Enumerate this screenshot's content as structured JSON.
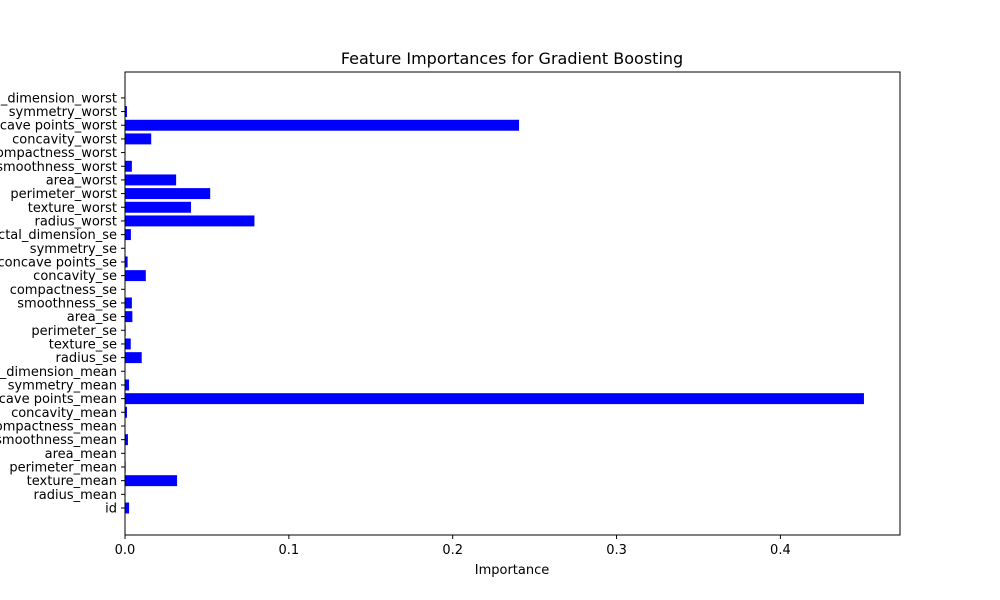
{
  "chart_data": {
    "type": "bar",
    "orientation": "horizontal",
    "title": "Feature Importances for Gradient Boosting",
    "xlabel": "Importance",
    "ylabel": "",
    "xlim": [
      0,
      0.473
    ],
    "xticks": [
      "0.0",
      "0.1",
      "0.2",
      "0.3",
      "0.4"
    ],
    "xtick_values": [
      0,
      0.1,
      0.2,
      0.3,
      0.4
    ],
    "bar_color": "#0000ff",
    "grid": false,
    "categories": [
      "id",
      "radius_mean",
      "texture_mean",
      "perimeter_mean",
      "area_mean",
      "smoothness_mean",
      "compactness_mean",
      "concavity_mean",
      "concave points_mean",
      "symmetry_mean",
      "fractal_dimension_mean",
      "radius_se",
      "texture_se",
      "perimeter_se",
      "area_se",
      "smoothness_se",
      "compactness_se",
      "concavity_se",
      "concave points_se",
      "symmetry_se",
      "fractal_dimension_se",
      "radius_worst",
      "texture_worst",
      "perimeter_worst",
      "area_worst",
      "smoothness_worst",
      "compactness_worst",
      "concavity_worst",
      "concave points_worst",
      "symmetry_worst",
      "fractal_dimension_worst"
    ],
    "values": [
      0.0025,
      0.0002,
      0.0318,
      0.0004,
      0.0002,
      0.0018,
      0.0003,
      0.0012,
      0.451,
      0.0025,
      0.0003,
      0.0102,
      0.0035,
      0.0004,
      0.0045,
      0.0042,
      0.0003,
      0.0127,
      0.0016,
      0.0003,
      0.0036,
      0.079,
      0.0403,
      0.052,
      0.0312,
      0.0042,
      0.0003,
      0.016,
      0.2405,
      0.0012,
      0.0003
    ]
  }
}
